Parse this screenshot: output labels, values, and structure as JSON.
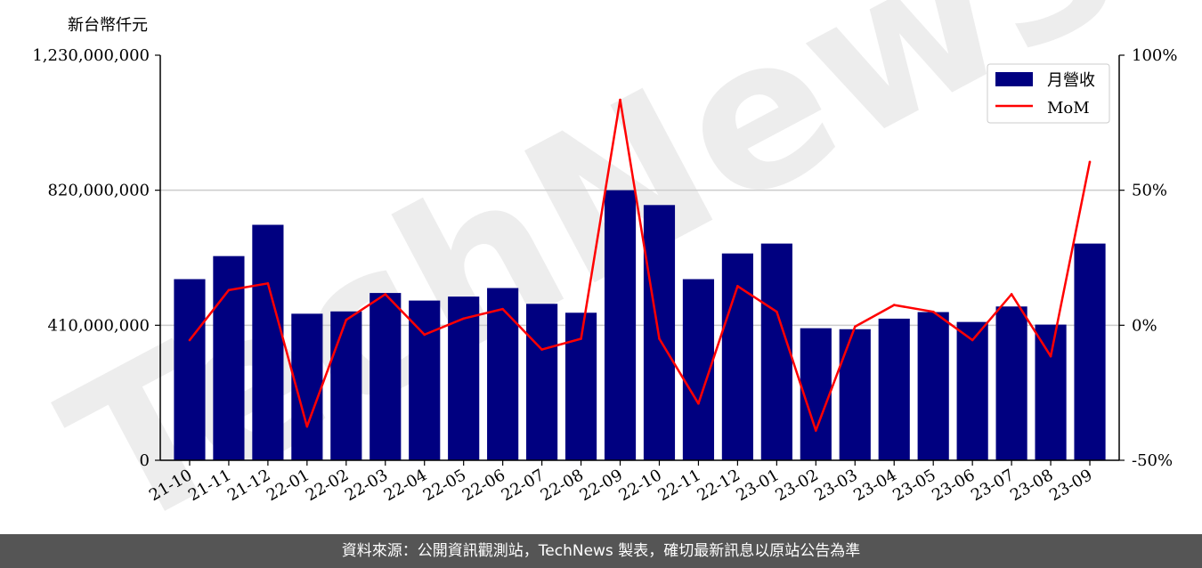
{
  "unit_label": "新台幣仟元",
  "footer_text": "資料來源：公開資訊觀測站，TechNews 製表，確切最新訊息以原站公告為準",
  "watermark_text": "TechNews",
  "colors": {
    "bar": "#000080",
    "line": "#ff0000",
    "grid": "#cccccc",
    "footer_bg": "#555555"
  },
  "chart_data": {
    "type": "bar",
    "title": "",
    "xlabel": "",
    "ylabel": "新台幣仟元",
    "categories": [
      "21-10",
      "21-11",
      "21-12",
      "22-01",
      "22-02",
      "22-03",
      "22-04",
      "22-05",
      "22-06",
      "22-07",
      "22-08",
      "22-09",
      "22-10",
      "22-11",
      "22-12",
      "23-01",
      "23-02",
      "23-03",
      "23-04",
      "23-05",
      "23-06",
      "23-07",
      "23-08",
      "23-09"
    ],
    "series": [
      {
        "name": "月營收",
        "axis": "left",
        "type": "bar",
        "values": [
          550000000,
          620000000,
          715000000,
          445000000,
          452000000,
          508000000,
          485000000,
          497000000,
          523000000,
          475000000,
          448000000,
          820000000,
          775000000,
          550000000,
          628000000,
          658000000,
          401000000,
          398000000,
          430000000,
          450000000,
          420000000,
          467000000,
          412000000,
          658000000
        ]
      },
      {
        "name": "MoM",
        "axis": "right",
        "type": "line",
        "unit": "%",
        "values": [
          -5.5,
          13.0,
          15.5,
          -37.5,
          2.0,
          11.5,
          -3.5,
          2.5,
          6.0,
          -9.0,
          -5.0,
          83.5,
          -5.0,
          -29.0,
          14.5,
          5.0,
          -39.0,
          -0.5,
          7.5,
          5.0,
          -5.5,
          11.5,
          -11.5,
          60.5
        ]
      }
    ],
    "ylim": [
      0,
      1230000000
    ],
    "yticks": [
      "0",
      "410,000,000",
      "820,000,000",
      "1,230,000,000"
    ],
    "y2lim": [
      -50,
      100
    ],
    "y2ticks": [
      "-50%",
      "0%",
      "50%",
      "100%"
    ],
    "grid": "horizontal",
    "legend_position": "top-right"
  }
}
